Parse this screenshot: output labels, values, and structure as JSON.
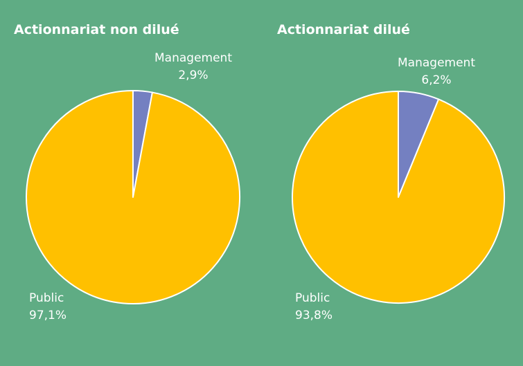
{
  "chart_data": [
    {
      "type": "pie",
      "title": "Actionnariat non dilué",
      "slices": [
        {
          "label": "Management",
          "value_label": "2,9%",
          "value": 2.9,
          "color": "#7480c1"
        },
        {
          "label": "Public",
          "value_label": "97,1%",
          "value": 97.1,
          "color": "#ffc000"
        }
      ]
    },
    {
      "type": "pie",
      "title": "Actionnariat dilué",
      "slices": [
        {
          "label": "Management",
          "value_label": "6,2%",
          "value": 6.2,
          "color": "#7480c1"
        },
        {
          "label": "Public",
          "value_label": "93,8%",
          "value": 93.8,
          "color": "#ffc000"
        }
      ]
    }
  ],
  "colors": {
    "background": "#5fac84",
    "slice_border": "#ffffff"
  }
}
